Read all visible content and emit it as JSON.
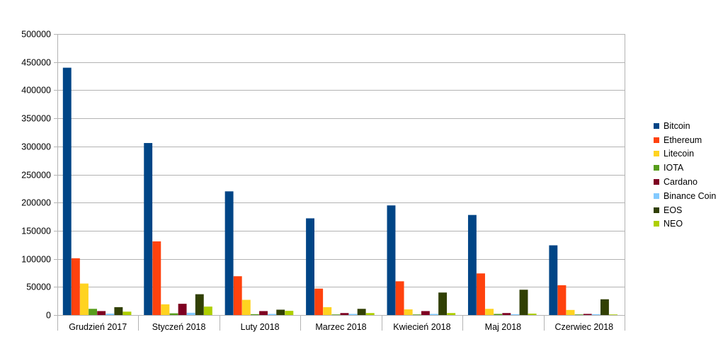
{
  "chart_data": {
    "type": "bar",
    "title": "",
    "xlabel": "",
    "ylabel": "",
    "ylim": [
      0,
      500000
    ],
    "yticks": [
      0,
      50000,
      100000,
      150000,
      200000,
      250000,
      300000,
      350000,
      400000,
      450000,
      500000
    ],
    "grid": true,
    "legend_position": "right",
    "categories": [
      "Grudzień 2017",
      "Styczeń 2018",
      "Luty 2018",
      "Marzec 2018",
      "Kwiecień 2018",
      "Maj 2018",
      "Czerwiec 2018"
    ],
    "series": [
      {
        "name": "Bitcoin",
        "color": "#004586",
        "values": [
          440000,
          306000,
          220000,
          172000,
          195000,
          178000,
          124000
        ]
      },
      {
        "name": "Ethereum",
        "color": "#ff420e",
        "values": [
          101000,
          131000,
          69000,
          47000,
          60000,
          74000,
          53000
        ]
      },
      {
        "name": "Litecoin",
        "color": "#ffd320",
        "values": [
          56000,
          19000,
          27000,
          14000,
          10000,
          11000,
          9000
        ]
      },
      {
        "name": "IOTA",
        "color": "#579d1c",
        "values": [
          11000,
          3000,
          1500,
          1000,
          1000,
          2000,
          1000
        ]
      },
      {
        "name": "Cardano",
        "color": "#7e0021",
        "values": [
          7000,
          20000,
          7000,
          3500,
          7000,
          3500,
          2000
        ]
      },
      {
        "name": "Binance Coin",
        "color": "#83caff",
        "values": [
          2500,
          4000,
          2000,
          2000,
          2000,
          1500,
          1500
        ]
      },
      {
        "name": "EOS",
        "color": "#314004",
        "values": [
          14000,
          37000,
          9500,
          11000,
          40000,
          45000,
          28000
        ]
      },
      {
        "name": "NEO",
        "color": "#aecf00",
        "values": [
          6000,
          15000,
          7500,
          3500,
          3500,
          2500,
          1000
        ]
      }
    ]
  }
}
